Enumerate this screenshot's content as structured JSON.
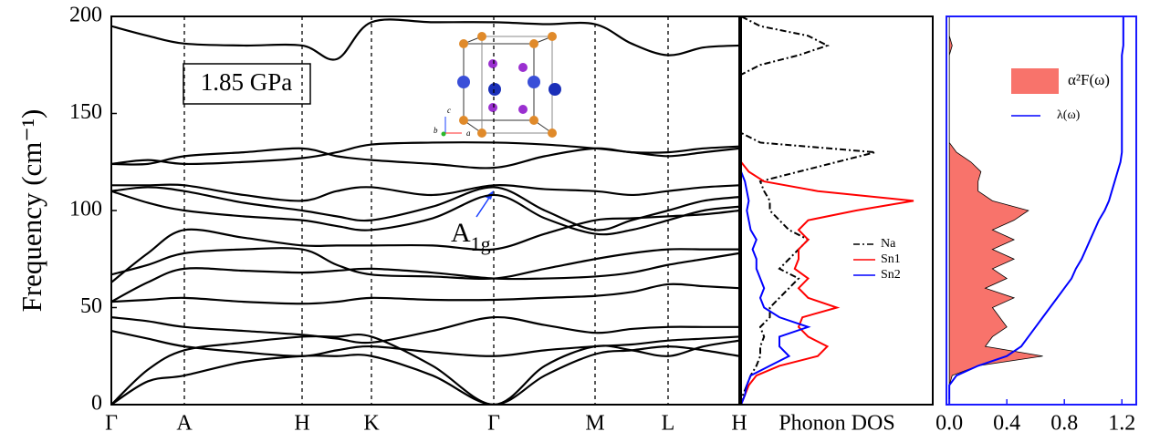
{
  "chart_data": [
    {
      "type": "line",
      "ylabel": "Frequency (cm⁻¹)",
      "color": "#000000",
      "annotations": {
        "pressure": "1.85 GPa",
        "mode": "A",
        "mode_sub": "1g",
        "axis_c": "c",
        "axis_a": "a",
        "axis_b": "b"
      },
      "xlim": [
        0,
        6.88
      ],
      "ylim": [
        0,
        200
      ],
      "yticks": [
        0,
        50,
        100,
        150,
        200
      ],
      "xticks": [
        {
          "value": 0,
          "label": "Γ"
        },
        {
          "value": 0.8,
          "label": "A"
        },
        {
          "value": 2.09,
          "label": "H"
        },
        {
          "value": 2.85,
          "label": "K"
        },
        {
          "value": 4.19,
          "label": "Γ"
        },
        {
          "value": 5.3,
          "label": "M"
        },
        {
          "value": 6.1,
          "label": "L"
        },
        {
          "value": 6.88,
          "label": "H"
        }
      ],
      "x": [
        0,
        0.4,
        0.8,
        1.45,
        2.09,
        2.47,
        2.85,
        3.52,
        4.19,
        4.75,
        5.3,
        5.7,
        6.1,
        6.49,
        6.88
      ],
      "series": [
        {
          "values": [
            195,
            190,
            186,
            185,
            185,
            178,
            197,
            197,
            197,
            196,
            196,
            186,
            180,
            184,
            185
          ]
        },
        {
          "values": [
            124,
            124,
            128,
            130,
            132,
            128,
            126,
            124,
            122,
            128,
            132,
            130,
            130,
            132,
            133
          ]
        },
        {
          "values": [
            124,
            126,
            124,
            125,
            127,
            130,
            134,
            135,
            135,
            134,
            132,
            130,
            128,
            130,
            132
          ]
        },
        {
          "values": [
            113,
            113,
            113,
            108,
            105,
            110,
            112,
            108,
            113,
            111,
            110,
            108,
            110,
            112,
            113
          ]
        },
        {
          "values": [
            110,
            112,
            110,
            104,
            100,
            97,
            95,
            102,
            112,
            100,
            90,
            95,
            100,
            105,
            107
          ]
        },
        {
          "values": [
            110,
            104,
            100,
            97,
            95,
            92,
            90,
            96,
            108,
            96,
            88,
            90,
            95,
            100,
            102
          ]
        },
        {
          "values": [
            63,
            78,
            90,
            86,
            82,
            82,
            82,
            82,
            80,
            88,
            95,
            96,
            97,
            98,
            100
          ]
        },
        {
          "values": [
            67,
            72,
            78,
            80,
            80,
            72,
            67,
            66,
            65,
            70,
            75,
            78,
            80,
            80,
            80
          ]
        },
        {
          "values": [
            53,
            63,
            70,
            69,
            68,
            69,
            70,
            68,
            65,
            65,
            66,
            68,
            72,
            75,
            78
          ]
        },
        {
          "values": [
            53,
            54,
            55,
            53,
            52,
            53,
            55,
            54,
            54,
            55,
            56,
            58,
            62,
            61,
            60
          ]
        },
        {
          "values": [
            45,
            43,
            40,
            38,
            36,
            34,
            32,
            38,
            45,
            41,
            37,
            39,
            40,
            40,
            40
          ]
        },
        {
          "values": [
            38,
            34,
            30,
            27,
            25,
            28,
            30,
            27,
            25,
            28,
            30,
            31,
            33,
            34,
            35
          ]
        },
        {
          "values": [
            0,
            12,
            15,
            22,
            25,
            25,
            25,
            15,
            0,
            15,
            26,
            28,
            30,
            28,
            25
          ]
        },
        {
          "values": [
            0,
            18,
            28,
            32,
            35,
            35,
            35,
            20,
            0,
            20,
            30,
            28,
            25,
            30,
            33
          ]
        }
      ]
    },
    {
      "type": "line",
      "xlabel": "Phonon DOS",
      "xlim": [
        0,
        1
      ],
      "ylim": [
        0,
        200
      ],
      "frequencies": [
        0,
        5,
        10,
        15,
        20,
        25,
        30,
        35,
        40,
        45,
        50,
        55,
        60,
        65,
        70,
        75,
        80,
        85,
        90,
        95,
        100,
        105,
        110,
        115,
        120,
        125,
        130,
        135,
        140,
        145,
        150,
        155,
        160,
        165,
        170,
        175,
        180,
        185,
        190,
        195,
        200
      ],
      "series": [
        {
          "name": "Na",
          "color": "#000000",
          "style": "dash-dot",
          "values": [
            0,
            0.01,
            0.03,
            0.05,
            0.08,
            0.1,
            0.1,
            0.12,
            0.1,
            0.15,
            0.15,
            0.2,
            0.25,
            0.3,
            0.2,
            0.25,
            0.3,
            0.35,
            0.25,
            0.2,
            0.15,
            0.15,
            0.12,
            0.1,
            0.3,
            0.5,
            0.7,
            0.1,
            0,
            0,
            0,
            0,
            0,
            0,
            0,
            0.1,
            0.3,
            0.45,
            0.35,
            0.1,
            0
          ]
        },
        {
          "name": "Sn1",
          "color": "#ff0000",
          "style": "solid",
          "values": [
            0,
            0.02,
            0.04,
            0.08,
            0.2,
            0.4,
            0.45,
            0.35,
            0.3,
            0.32,
            0.5,
            0.35,
            0.3,
            0.35,
            0.28,
            0.3,
            0.3,
            0.35,
            0.3,
            0.35,
            0.6,
            0.9,
            0.4,
            0.12,
            0.04,
            0,
            0,
            0,
            0,
            0,
            0,
            0,
            0,
            0,
            0,
            0,
            0,
            0,
            0,
            0,
            0
          ]
        },
        {
          "name": "Sn2",
          "color": "#0000ff",
          "style": "solid",
          "values": [
            0,
            0.02,
            0.03,
            0.05,
            0.15,
            0.25,
            0.2,
            0.2,
            0.35,
            0.2,
            0.12,
            0.1,
            0.12,
            0.1,
            0.08,
            0.08,
            0.06,
            0.08,
            0.05,
            0.04,
            0.03,
            0.04,
            0.03,
            0.02,
            0,
            0,
            0,
            0,
            0,
            0,
            0,
            0,
            0,
            0,
            0,
            0,
            0,
            0,
            0,
            0,
            0
          ]
        }
      ]
    },
    {
      "type": "area",
      "xlim": [
        -0.02,
        1.3
      ],
      "ylim": [
        0,
        200
      ],
      "xticks": [
        {
          "value": 0,
          "label": "0.0"
        },
        0.4,
        0.8,
        1.2
      ],
      "frequencies": [
        0,
        5,
        10,
        15,
        20,
        25,
        30,
        35,
        40,
        45,
        50,
        55,
        60,
        65,
        70,
        75,
        80,
        85,
        90,
        95,
        100,
        105,
        110,
        115,
        120,
        125,
        130,
        135,
        140,
        145,
        150,
        155,
        160,
        165,
        170,
        175,
        180,
        185,
        190,
        195,
        200
      ],
      "series": [
        {
          "name": "α²F(ω)",
          "color": "#f8736b",
          "filled": true,
          "values": [
            0,
            0,
            0,
            0.02,
            0.2,
            0.65,
            0.25,
            0.3,
            0.4,
            0.35,
            0.3,
            0.45,
            0.25,
            0.4,
            0.3,
            0.45,
            0.3,
            0.45,
            0.3,
            0.45,
            0.55,
            0.3,
            0.2,
            0.2,
            0.22,
            0.15,
            0.05,
            0,
            0,
            0,
            0,
            0,
            0,
            0,
            0,
            0,
            0,
            0.02,
            0,
            0,
            0
          ]
        },
        {
          "name": "λ(ω)",
          "color": "#0000ff",
          "filled": false,
          "values": [
            0,
            0,
            0,
            0.05,
            0.2,
            0.4,
            0.5,
            0.55,
            0.6,
            0.65,
            0.7,
            0.75,
            0.8,
            0.85,
            0.88,
            0.92,
            0.95,
            0.98,
            1.01,
            1.04,
            1.08,
            1.11,
            1.13,
            1.15,
            1.17,
            1.19,
            1.2,
            1.2,
            1.2,
            1.2,
            1.2,
            1.2,
            1.2,
            1.2,
            1.2,
            1.2,
            1.2,
            1.21,
            1.21,
            1.21,
            1.21
          ]
        }
      ]
    }
  ]
}
